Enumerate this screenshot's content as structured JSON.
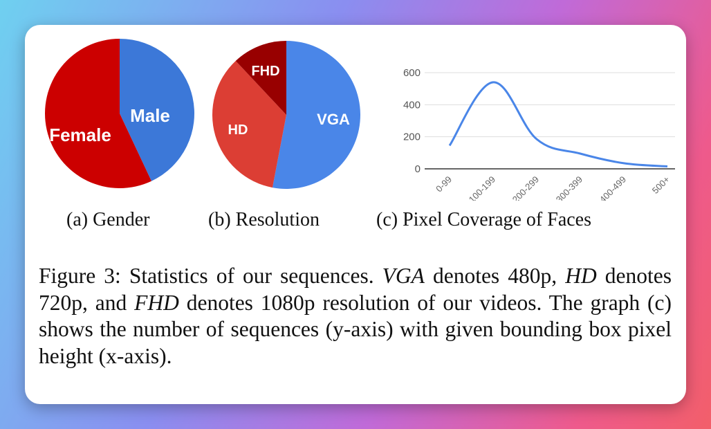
{
  "chart_data": [
    {
      "type": "pie",
      "categories": [
        "Male",
        "Female"
      ],
      "values": [
        43,
        57
      ],
      "colors": [
        "#3c78d8",
        "#cc0000"
      ],
      "caption": "(a) Gender"
    },
    {
      "type": "pie",
      "categories": [
        "VGA",
        "HD",
        "FHD"
      ],
      "values": [
        53,
        35,
        12
      ],
      "colors": [
        "#4a86e8",
        "#dc3e34",
        "#980000"
      ],
      "caption": "(b) Resolution"
    },
    {
      "type": "line",
      "categories": [
        "0-99",
        "100-199",
        "200-299",
        "300-399",
        "400-499",
        "500+"
      ],
      "values": [
        145,
        540,
        185,
        95,
        35,
        15
      ],
      "ylim": [
        0,
        600
      ],
      "yticks": [
        "0",
        "200",
        "400",
        "600"
      ],
      "grid": true,
      "color": "#4a86e8",
      "caption": "(c) Pixel Coverage of Faces"
    }
  ],
  "caption": {
    "p1": "Figure 3: Statistics of our sequences. ",
    "vga": "VGA",
    "p2": " denotes 480p, ",
    "hd": "HD",
    "p3": " denotes 720p, and ",
    "fhd": "FHD",
    "p4": " denotes 1080p resolution of our videos. The graph (c) shows the number of sequences (y-axis) with given bounding box pixel height (x-axis)."
  }
}
